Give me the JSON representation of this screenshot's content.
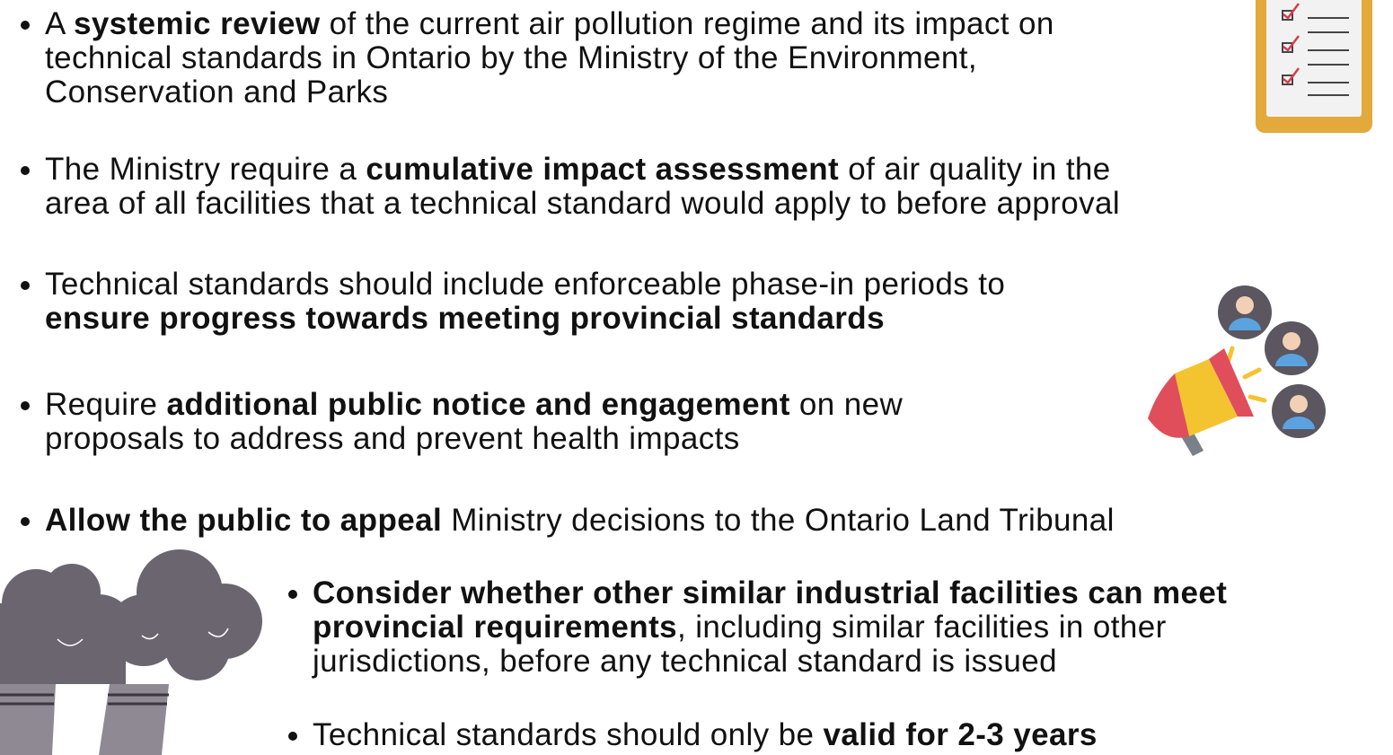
{
  "bullets": [
    {
      "lines": [
        [
          {
            "text": "A ",
            "bold": false
          },
          {
            "text": "systemic review",
            "bold": true
          },
          {
            "text": " of the current air pollution regime and its impact on",
            "bold": false
          }
        ],
        [
          {
            "text": "technical standards in Ontario by the Ministry of the Environment,",
            "bold": false
          }
        ],
        [
          {
            "text": "Conservation and Parks",
            "bold": false
          }
        ]
      ]
    },
    {
      "lines": [
        [
          {
            "text": "The Ministry require a ",
            "bold": false
          },
          {
            "text": "cumulative impact assessment",
            "bold": true
          },
          {
            "text": " of air quality in the",
            "bold": false
          }
        ],
        [
          {
            "text": "area of all facilities that a technical standard would apply to before approval",
            "bold": false
          }
        ]
      ]
    },
    {
      "lines": [
        [
          {
            "text": "Technical standards should include enforceable phase-in periods to",
            "bold": false
          }
        ],
        [
          {
            "text": "ensure progress towards meeting provincial standards",
            "bold": true
          }
        ]
      ]
    },
    {
      "lines": [
        [
          {
            "text": "Require ",
            "bold": false
          },
          {
            "text": "additional public notice and engagement",
            "bold": true
          },
          {
            "text": " on new",
            "bold": false
          }
        ],
        [
          {
            "text": "proposals to address and prevent health impacts",
            "bold": false
          }
        ]
      ]
    },
    {
      "lines": [
        [
          {
            "text": "Allow the public to appeal",
            "bold": true
          },
          {
            "text": " Ministry decisions to the Ontario Land Tribunal",
            "bold": false
          }
        ]
      ]
    },
    {
      "lines": [
        [
          {
            "text": "Consider whether other similar industrial facilities can meet",
            "bold": true
          }
        ],
        [
          {
            "text": "provincial requirements",
            "bold": true
          },
          {
            "text": ", including similar facilities in other",
            "bold": false
          }
        ],
        [
          {
            "text": "jurisdictions, before any technical standard is issued",
            "bold": false
          }
        ]
      ]
    },
    {
      "lines": [
        [
          {
            "text": "Technical standards should only be ",
            "bold": false
          },
          {
            "text": "valid for 2-3 years",
            "bold": true
          }
        ]
      ]
    }
  ]
}
